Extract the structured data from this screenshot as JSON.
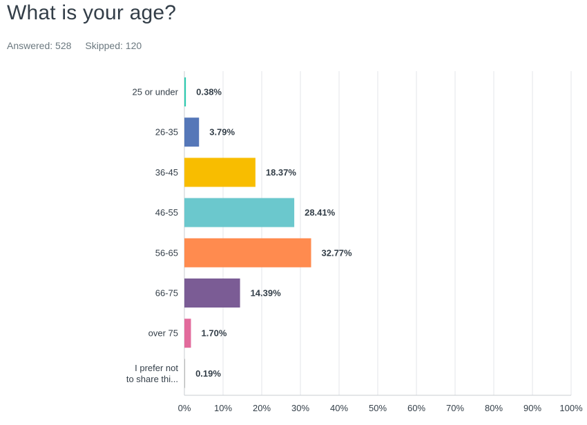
{
  "header": {
    "title": "What is your age?",
    "answered_label": "Answered:",
    "answered_value": "528",
    "skipped_label": "Skipped:",
    "skipped_value": "120"
  },
  "chart_data": {
    "type": "bar",
    "orientation": "horizontal",
    "categories": [
      [
        "25 or under"
      ],
      [
        "26-35"
      ],
      [
        "36-45"
      ],
      [
        "46-55"
      ],
      [
        "56-65"
      ],
      [
        "66-75"
      ],
      [
        "over 75"
      ],
      [
        "I prefer not",
        "to share thi..."
      ]
    ],
    "values": [
      0.38,
      3.79,
      18.37,
      28.41,
      32.77,
      14.39,
      1.7,
      0.19
    ],
    "value_labels": [
      "0.38%",
      "3.79%",
      "18.37%",
      "28.41%",
      "32.77%",
      "14.39%",
      "1.70%",
      "0.19%"
    ],
    "colors": [
      "#2dccb0",
      "#5577b8",
      "#f8bd00",
      "#6bc8cd",
      "#ff8b4f",
      "#7b5c95",
      "#e26b9c",
      "#b8b8b8"
    ],
    "xlim": [
      0,
      100
    ],
    "x_ticks": [
      "0%",
      "10%",
      "20%",
      "30%",
      "40%",
      "50%",
      "60%",
      "70%",
      "80%",
      "90%",
      "100%"
    ],
    "grid": true
  }
}
